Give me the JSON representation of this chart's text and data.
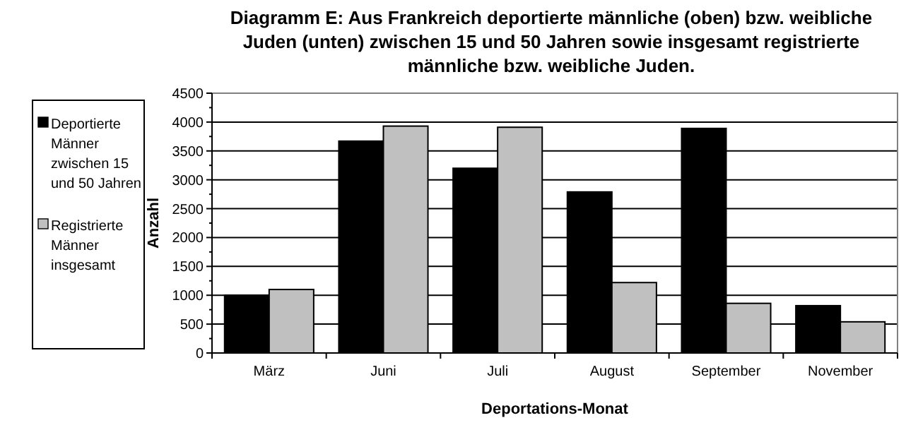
{
  "chart_data": {
    "type": "bar",
    "title": "Diagramm E: Aus Frankreich deportierte männliche (oben) bzw. weibliche Juden (unten) zwischen 15 und 50 Jahren sowie insgesamt registrierte männliche bzw. weibliche Juden.",
    "xlabel": "Deportations-Monat",
    "ylabel": "Anzahl",
    "categories": [
      "März",
      "Juni",
      "Juli",
      "August",
      "September",
      "November"
    ],
    "series": [
      {
        "name": "Deportierte Männer zwischen 15 und 50 Jahren",
        "color": "#000000",
        "values": [
          1000,
          3670,
          3200,
          2790,
          3890,
          820
        ]
      },
      {
        "name": "Registrierte Männer insgesamt",
        "color": "#c0c0c0",
        "values": [
          1100,
          3930,
          3910,
          1220,
          860,
          540
        ]
      }
    ],
    "ylim": [
      0,
      4500
    ],
    "yticks": [
      0,
      500,
      1000,
      1500,
      2000,
      2500,
      3000,
      3500,
      4000,
      4500
    ],
    "grid": "y",
    "legend": "left"
  }
}
